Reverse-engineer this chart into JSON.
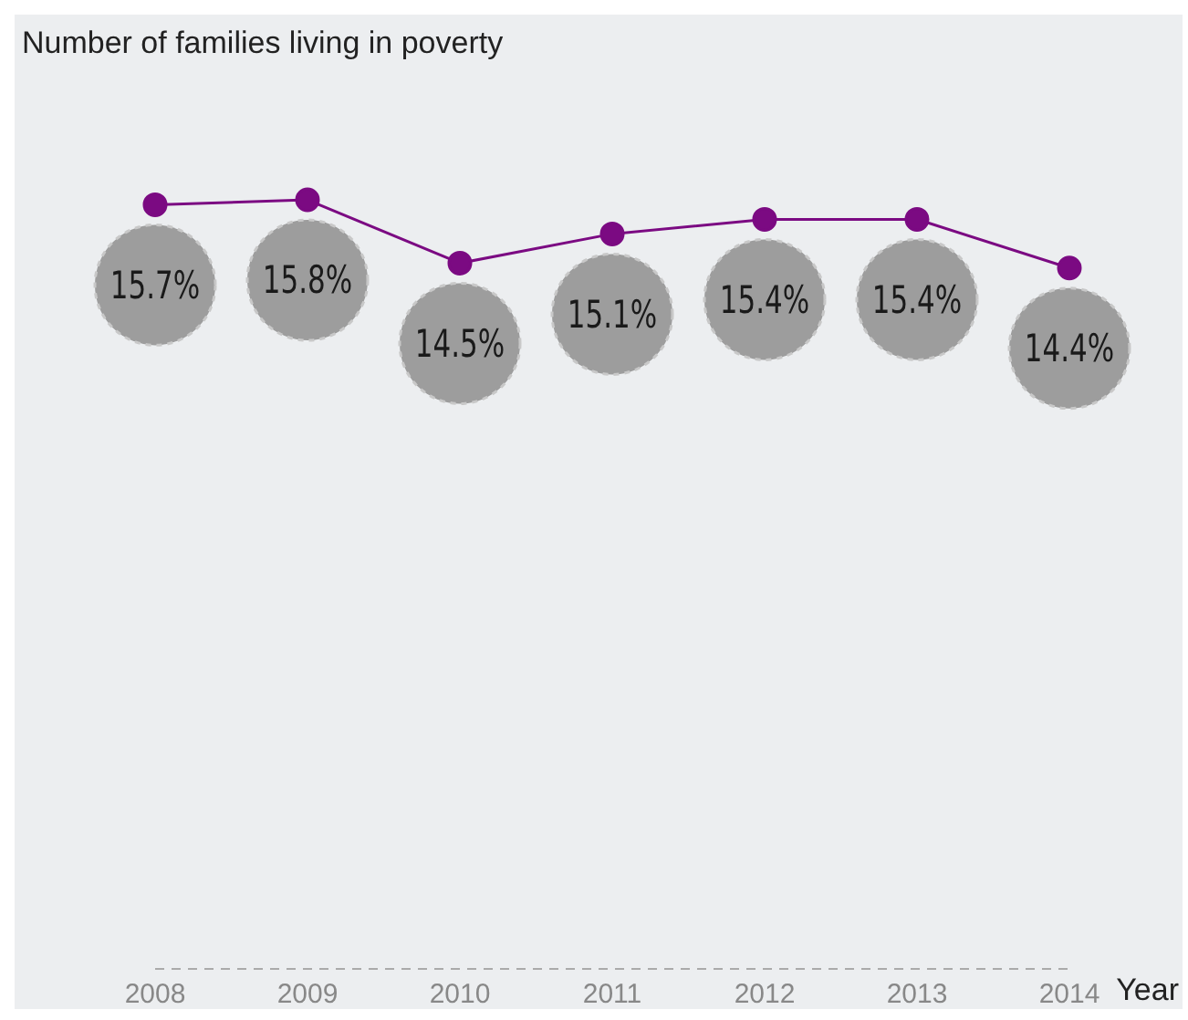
{
  "chart_data": {
    "type": "line",
    "title": "Number of  families living in poverty",
    "xlabel": "Year",
    "tick_labels": "x",
    "categories": [
      "2008",
      "2009",
      "2010",
      "2011",
      "2012",
      "2013",
      "2014"
    ],
    "series": [
      {
        "color": "#7b0a82",
        "values": [
          15.7,
          15.8,
          14.5,
          15.1,
          15.4,
          15.4,
          14.4
        ],
        "value_labels": [
          "15.7%",
          "15.8%",
          "14.5%",
          "15.1%",
          "15.4%",
          "15.4%",
          "14.4%"
        ]
      }
    ],
    "marker": "circle",
    "line_style": "solid",
    "grid": false,
    "legend": false
  }
}
